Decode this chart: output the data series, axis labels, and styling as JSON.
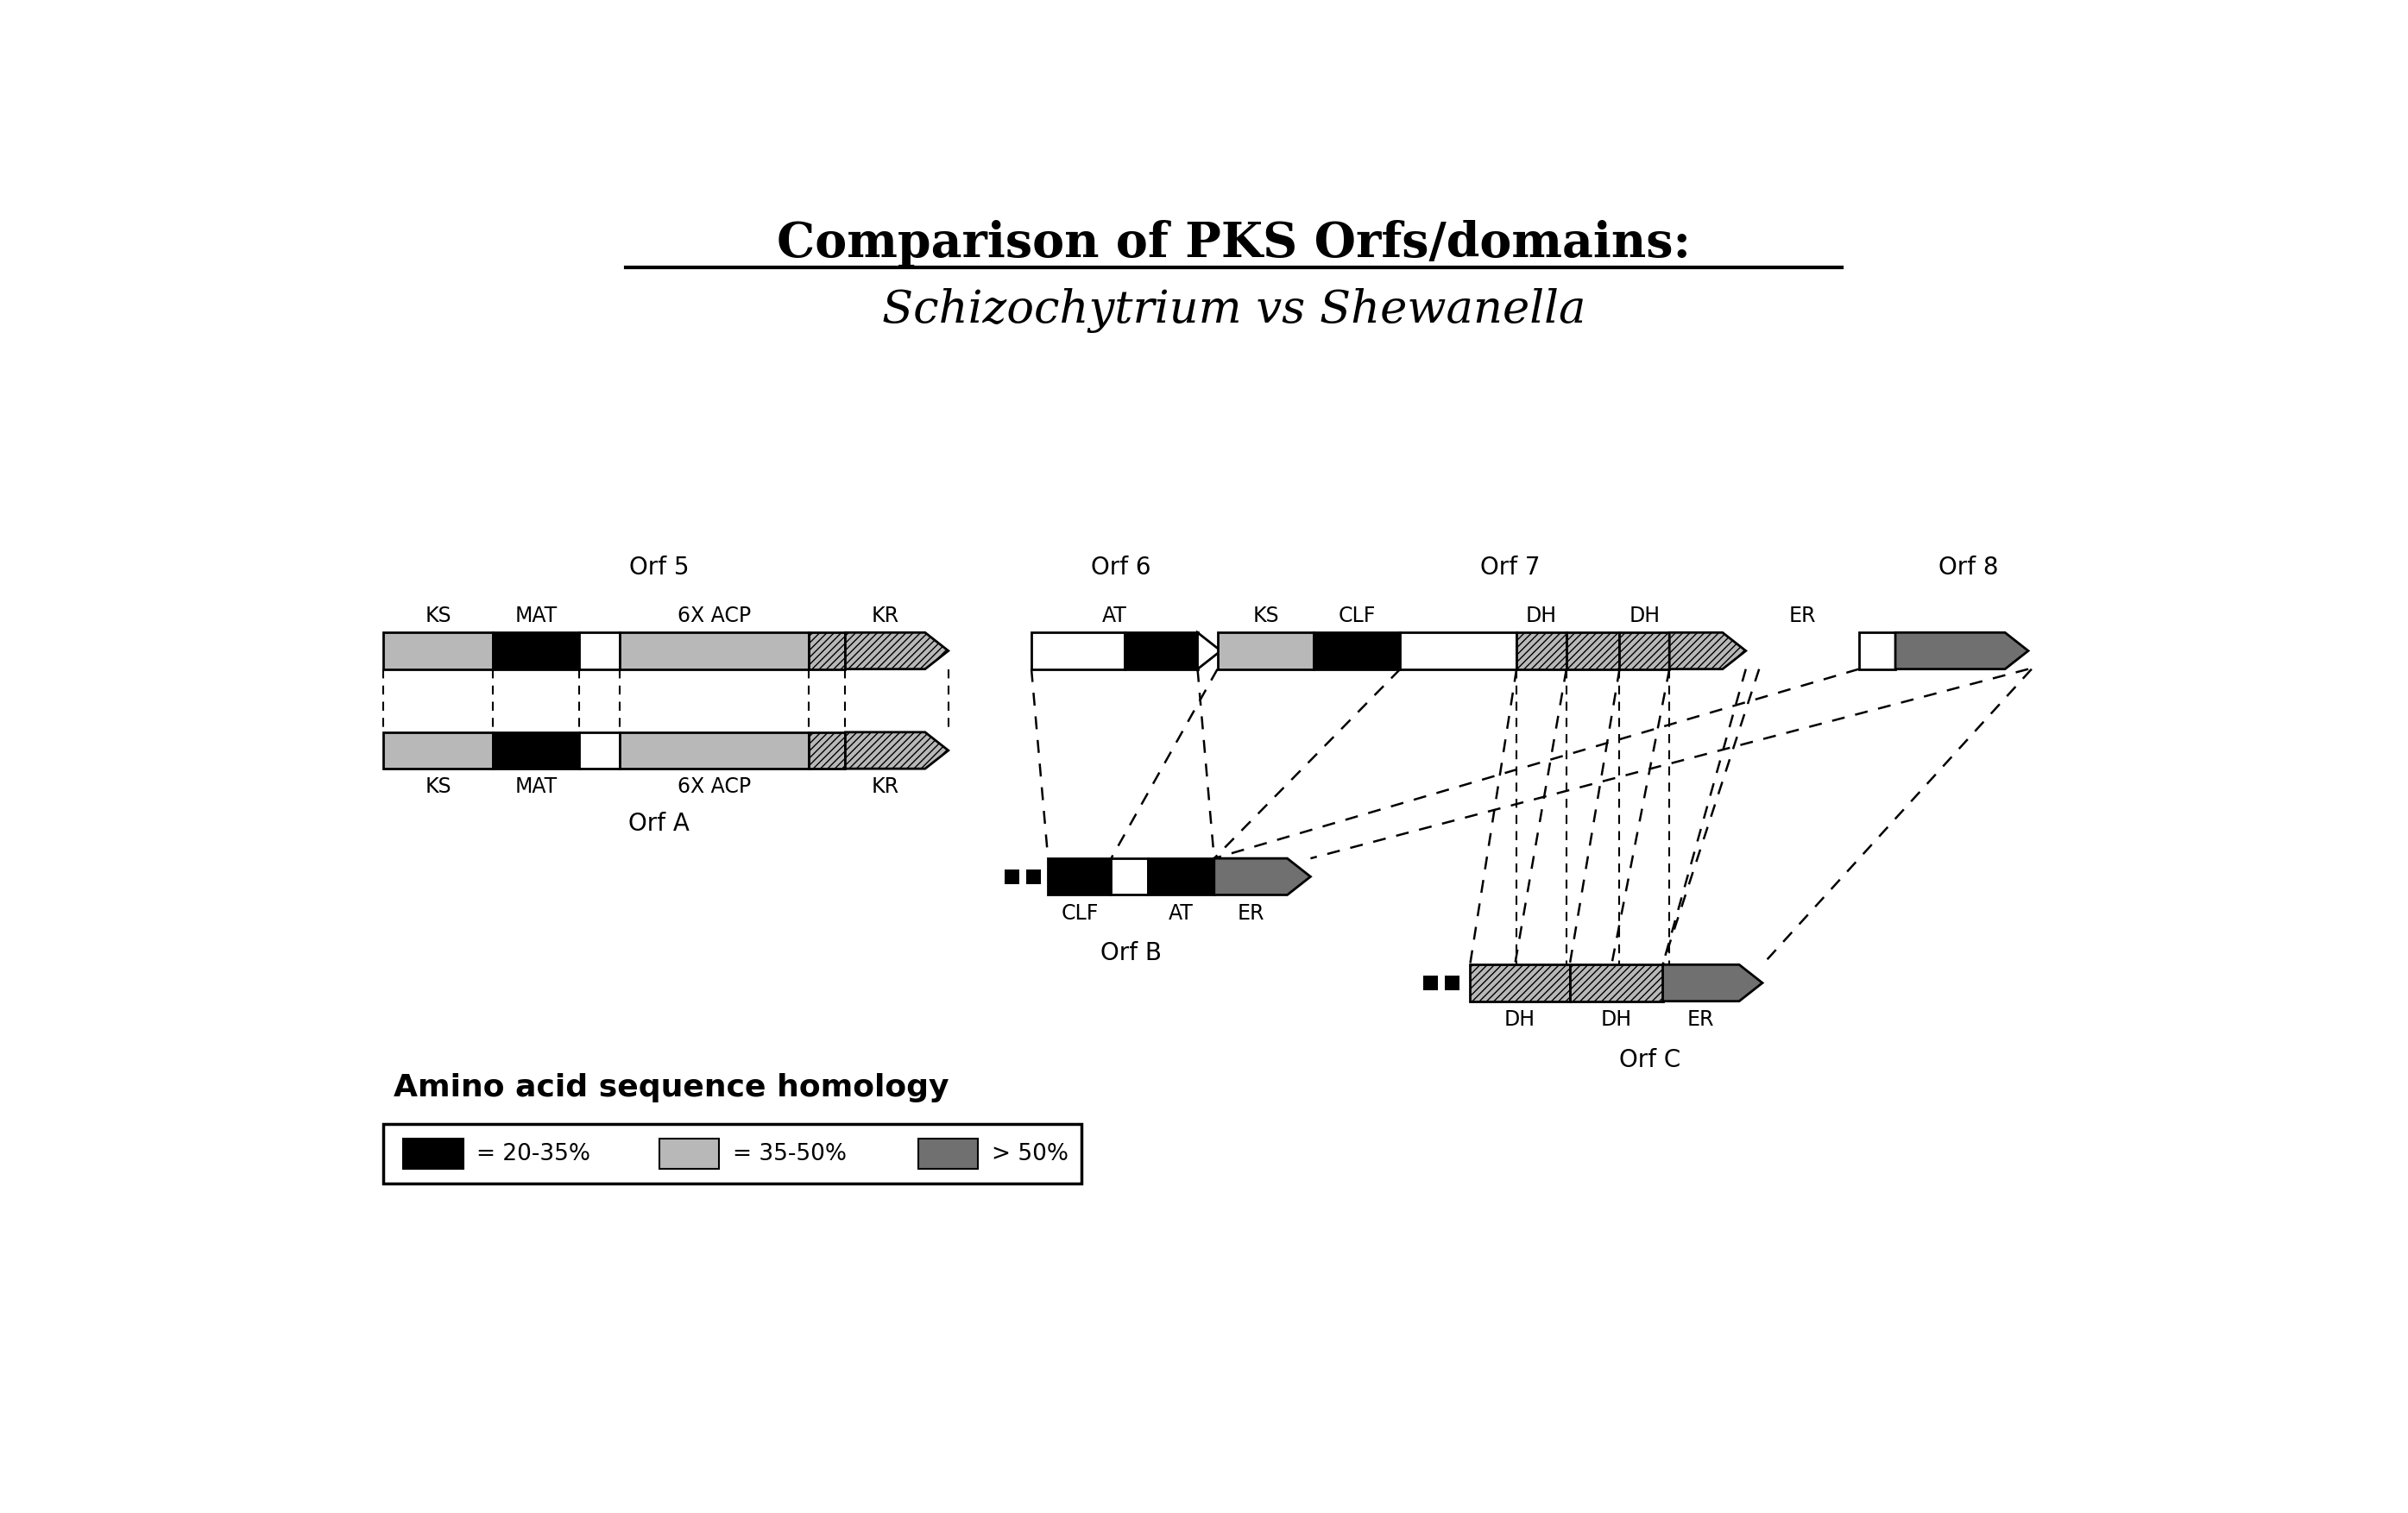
{
  "title1": "Comparison of PKS Orfs/domains:",
  "title2_part1": "Schizochytrium",
  "title2_vs": " vs ",
  "title2_part2": "Shewanella",
  "bg_color": "#ffffff",
  "orf_label_fontsize": 20,
  "domain_label_fontsize": 17,
  "legend_title_fontsize": 26,
  "legend_text_fontsize": 19,
  "title1_fontsize": 40,
  "title2_fontsize": 38,
  "colors": {
    "black": "#000000",
    "light_gray": "#b8b8b8",
    "white": "#ffffff",
    "dark_gray": "#707070"
  }
}
